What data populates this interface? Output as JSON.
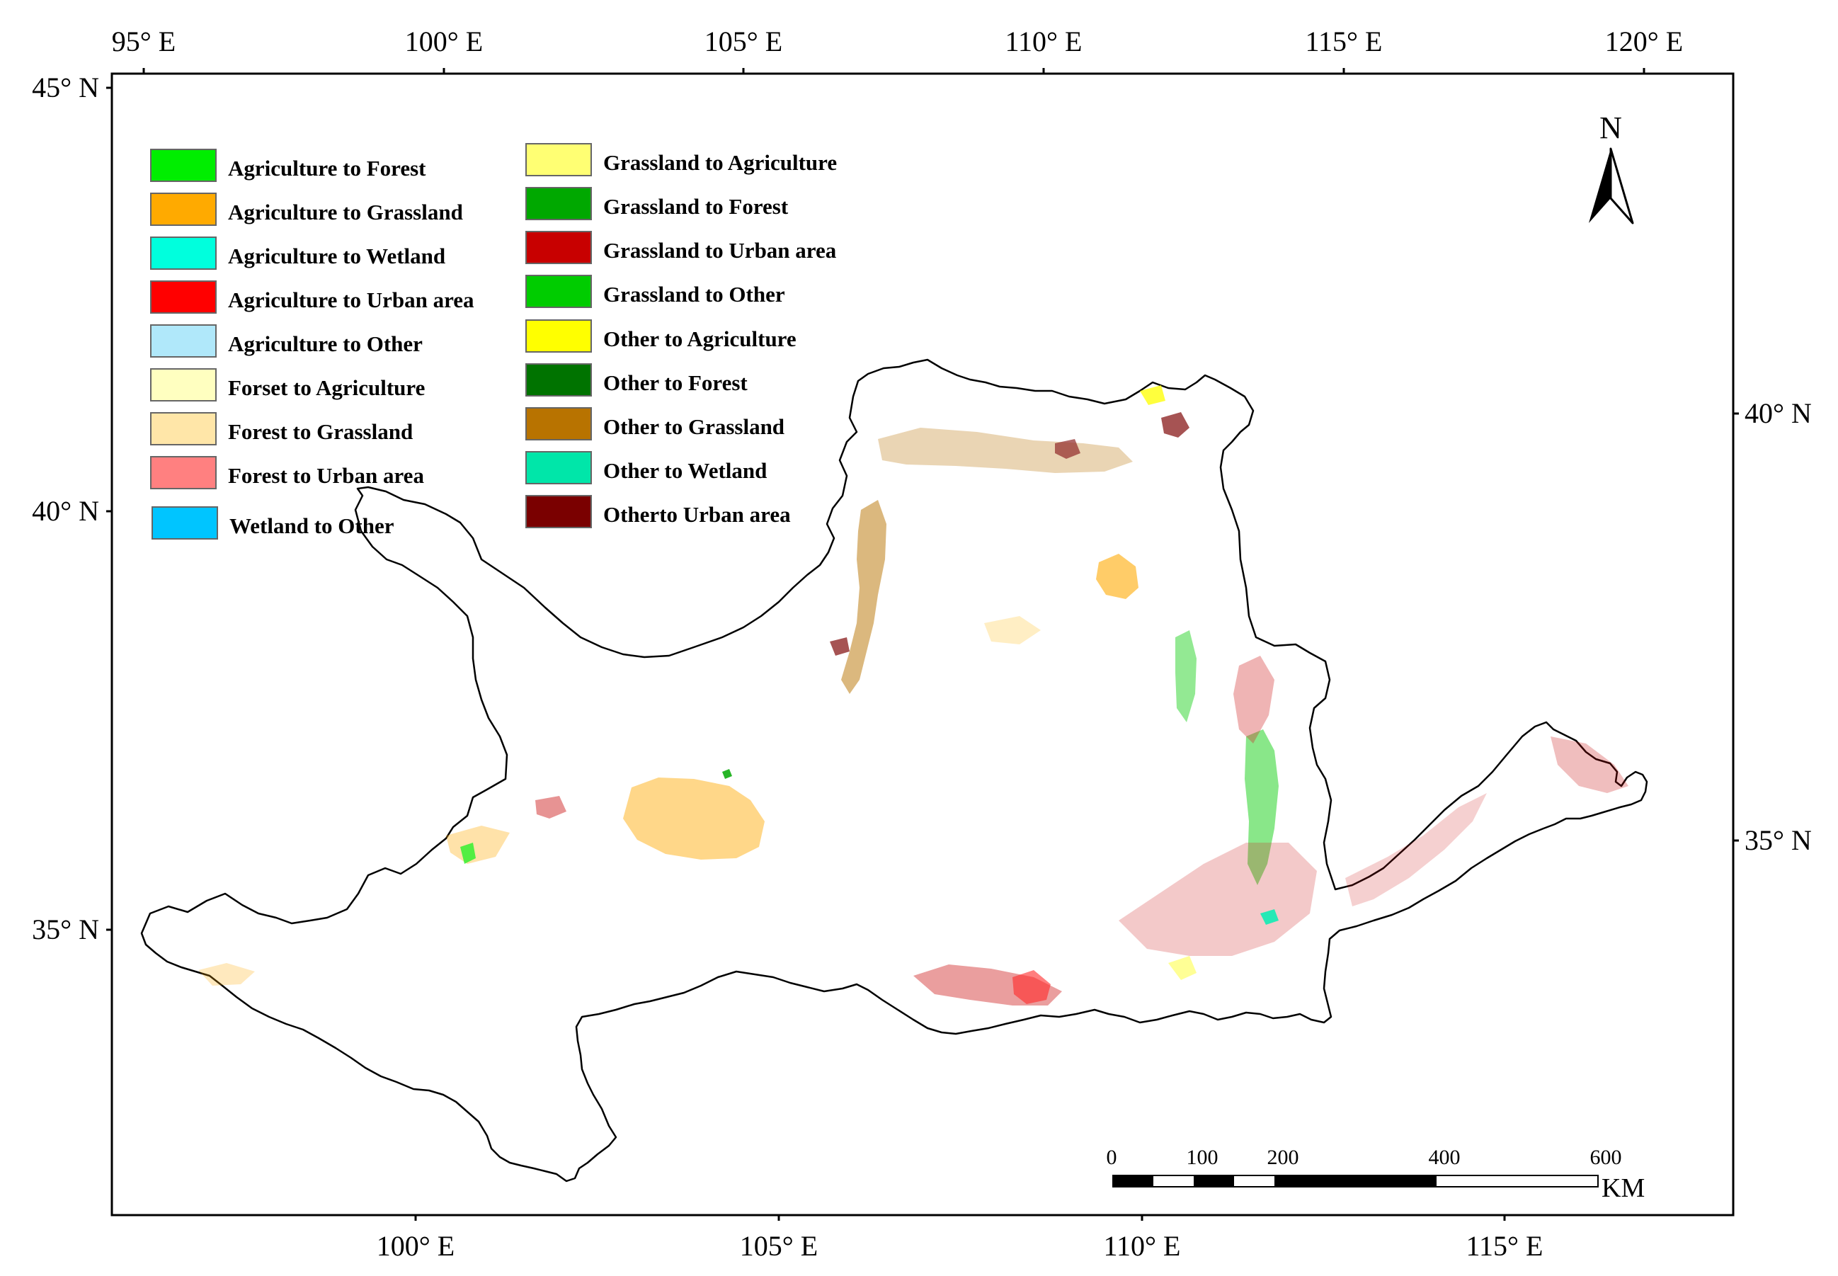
{
  "axes": {
    "top_ticks": [
      "95° E",
      "100° E",
      "105° E",
      "110° E",
      "115° E",
      "120° E"
    ],
    "bottom_ticks": [
      "100° E",
      "105° E",
      "110° E",
      "115° E"
    ],
    "left_ticks": [
      "45° N",
      "40° N",
      "35° N"
    ],
    "right_ticks": [
      "40° N",
      "35° N"
    ]
  },
  "legend": {
    "left_column": [
      {
        "label": "Agriculture to Forest",
        "color": "#00ee00"
      },
      {
        "label": "Agriculture to Grassland",
        "color": "#ffaa00"
      },
      {
        "label": "Agriculture to Wetland",
        "color": "#00ffdd"
      },
      {
        "label": "Agriculture to Urban area",
        "color": "#ff0000"
      },
      {
        "label": "Agriculture to Other",
        "color": "#b0e8fa"
      },
      {
        "label": "Forset to Agriculture",
        "color": "#ffffc0"
      },
      {
        "label": "Forest to Grassland",
        "color": "#ffe6a8"
      },
      {
        "label": "Forest to Urban area",
        "color": "#ff8080"
      },
      {
        "label": "Wetland to Other",
        "color": "#00c5ff"
      }
    ],
    "right_column": [
      {
        "label": "Grassland to Agriculture",
        "color": "#ffff73"
      },
      {
        "label": "Grassland to Forest",
        "color": "#00a800"
      },
      {
        "label": "Grassland to Urban area",
        "color": "#c80000"
      },
      {
        "label": "Grassland to Other",
        "color": "#00cc00"
      },
      {
        "label": "Other to Agriculture",
        "color": "#ffff00"
      },
      {
        "label": "Other to Forest",
        "color": "#007300"
      },
      {
        "label": "Other to Grassland",
        "color": "#b87300"
      },
      {
        "label": "Other to Wetland",
        "color": "#00e6a9"
      },
      {
        "label": "Otherto Urban area",
        "color": "#7a0000"
      }
    ]
  },
  "north_arrow": {
    "letter": "N",
    "icon": "north-arrow-icon"
  },
  "scale_bar": {
    "ticks": [
      "0",
      "100",
      "200",
      "400",
      "600"
    ],
    "unit": "KM"
  }
}
